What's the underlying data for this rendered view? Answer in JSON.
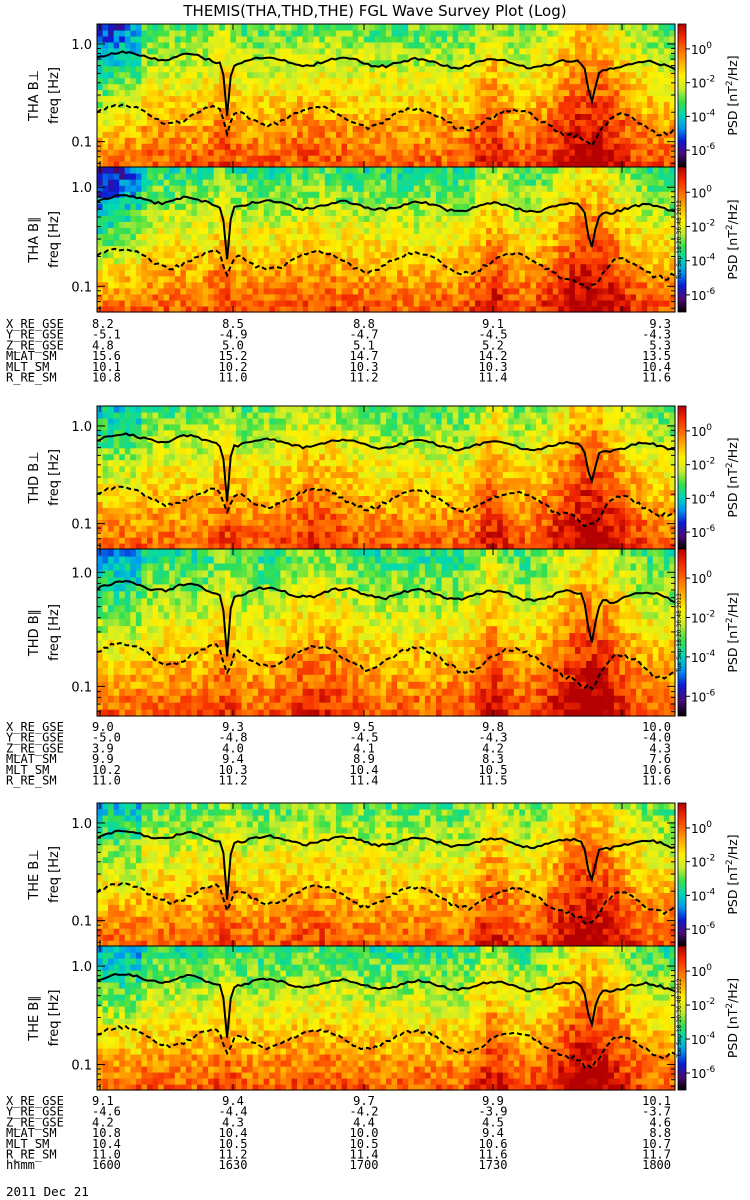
{
  "chart_data": {
    "type": "heatmap",
    "title": "THEMIS(THA,THD,THE) FGL Wave Survey Plot (Log)",
    "date_label": "2011 Dec 21",
    "yaxis": {
      "label": "freq [Hz]",
      "scale": "log",
      "range": [
        0.055,
        1.6
      ],
      "ticks": [
        {
          "value": 1.0,
          "label": "1.0"
        },
        {
          "value": 0.1,
          "label": "0.1"
        }
      ]
    },
    "xaxis": {
      "label": "hhmm",
      "range_minutes": [
        960,
        1080
      ],
      "ticks": [
        "1600",
        "1630",
        "1700",
        "1730",
        "1800"
      ]
    },
    "colorbar": {
      "label": "PSD [nT²/Hz]",
      "label_base": "PSD [nT",
      "label_sup": "2",
      "label_tail": "/Hz]",
      "scale": "log",
      "range": [
        1e-07,
        30
      ],
      "ticks": [
        {
          "base": "10",
          "exp": "0"
        },
        {
          "base": "10",
          "exp": "-2"
        },
        {
          "base": "10",
          "exp": "-4"
        },
        {
          "base": "10",
          "exp": "-6"
        }
      ],
      "colors": [
        "#000000",
        "#4b0b74",
        "#0a1bd6",
        "#0098f0",
        "#00d8b4",
        "#38e04a",
        "#c8ec2c",
        "#fff200",
        "#ffb000",
        "#ff6a00",
        "#f52a00",
        "#b40000"
      ]
    },
    "line_styles": {
      "upper_curve": "solid black",
      "lower_curve": "dashed black"
    },
    "stamp": "Tue Sep 18 20:36:48 2012",
    "groups": [
      {
        "name": "THA",
        "panels": [
          {
            "label": "THA B⊥",
            "component": "perp"
          },
          {
            "label": "THA B∥",
            "component": "par"
          }
        ],
        "ephemeris": [
          {
            "name": "X_RE_GSE",
            "values": [
              "8.2",
              "8.5",
              "8.8",
              "9.1",
              "9.3"
            ]
          },
          {
            "name": "Y_RE_GSE",
            "values": [
              "-5.1",
              "-4.9",
              "-4.7",
              "-4.5",
              "-4.3"
            ]
          },
          {
            "name": "Z_RE_GSE",
            "values": [
              "4.8",
              "5.0",
              "5.1",
              "5.2",
              "5.3"
            ]
          },
          {
            "name": "MLAT_SM",
            "values": [
              "15.6",
              "15.2",
              "14.7",
              "14.2",
              "13.5"
            ]
          },
          {
            "name": "MLT_SM",
            "values": [
              "10.1",
              "10.2",
              "10.3",
              "10.3",
              "10.4"
            ]
          },
          {
            "name": "R_RE_SM",
            "values": [
              "10.8",
              "11.0",
              "11.2",
              "11.4",
              "11.6"
            ]
          }
        ]
      },
      {
        "name": "THD",
        "panels": [
          {
            "label": "THD B⊥",
            "component": "perp"
          },
          {
            "label": "THD B∥",
            "component": "par"
          }
        ],
        "ephemeris": [
          {
            "name": "X_RE_GSE",
            "values": [
              "9.0",
              "9.3",
              "9.5",
              "9.8",
              "10.0"
            ]
          },
          {
            "name": "Y_RE_GSE",
            "values": [
              "-5.0",
              "-4.8",
              "-4.5",
              "-4.3",
              "-4.0"
            ]
          },
          {
            "name": "Z_RE_GSE",
            "values": [
              "3.9",
              "4.0",
              "4.1",
              "4.2",
              "4.3"
            ]
          },
          {
            "name": "MLAT_SM",
            "values": [
              "9.9",
              "9.4",
              "8.9",
              "8.3",
              "7.6"
            ]
          },
          {
            "name": "MLT_SM",
            "values": [
              "10.2",
              "10.3",
              "10.4",
              "10.5",
              "10.6"
            ]
          },
          {
            "name": "R_RE_SM",
            "values": [
              "11.0",
              "11.2",
              "11.4",
              "11.5",
              "11.6"
            ]
          }
        ]
      },
      {
        "name": "THE",
        "panels": [
          {
            "label": "THE B⊥",
            "component": "perp"
          },
          {
            "label": "THE B∥",
            "component": "par"
          }
        ],
        "ephemeris": [
          {
            "name": "X_RE_GSE",
            "values": [
              "9.1",
              "9.4",
              "9.7",
              "9.9",
              "10.1"
            ]
          },
          {
            "name": "Y_RE_GSE",
            "values": [
              "-4.6",
              "-4.4",
              "-4.2",
              "-3.9",
              "-3.7"
            ]
          },
          {
            "name": "Z_RE_GSE",
            "values": [
              "4.2",
              "4.3",
              "4.4",
              "4.5",
              "4.6"
            ]
          },
          {
            "name": "MLAT_SM",
            "values": [
              "10.8",
              "10.4",
              "10.0",
              "9.4",
              "8.8"
            ]
          },
          {
            "name": "MLT_SM",
            "values": [
              "10.4",
              "10.5",
              "10.5",
              "10.6",
              "10.7"
            ]
          },
          {
            "name": "R_RE_SM",
            "values": [
              "11.0",
              "11.2",
              "11.4",
              "11.6",
              "11.7"
            ]
          }
        ]
      }
    ]
  }
}
